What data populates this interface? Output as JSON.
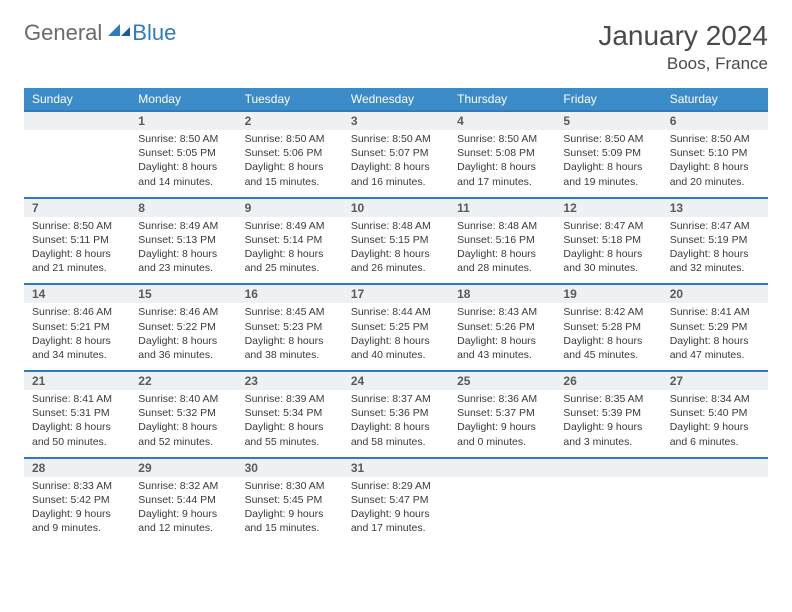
{
  "brand": {
    "general": "General",
    "blue": "Blue"
  },
  "title": {
    "month": "January 2024",
    "location": "Boos, France"
  },
  "colors": {
    "header_bg": "#3b8bc9",
    "header_text": "#ffffff",
    "row_border": "#2f7bbf",
    "daynum_bg": "#eef1f3",
    "text": "#3a3a3a"
  },
  "weekdays": [
    "Sunday",
    "Monday",
    "Tuesday",
    "Wednesday",
    "Thursday",
    "Friday",
    "Saturday"
  ],
  "weeks": [
    {
      "nums": [
        "",
        "1",
        "2",
        "3",
        "4",
        "5",
        "6"
      ],
      "cells": [
        null,
        {
          "sunrise": "Sunrise: 8:50 AM",
          "sunset": "Sunset: 5:05 PM",
          "daylight": "Daylight: 8 hours and 14 minutes."
        },
        {
          "sunrise": "Sunrise: 8:50 AM",
          "sunset": "Sunset: 5:06 PM",
          "daylight": "Daylight: 8 hours and 15 minutes."
        },
        {
          "sunrise": "Sunrise: 8:50 AM",
          "sunset": "Sunset: 5:07 PM",
          "daylight": "Daylight: 8 hours and 16 minutes."
        },
        {
          "sunrise": "Sunrise: 8:50 AM",
          "sunset": "Sunset: 5:08 PM",
          "daylight": "Daylight: 8 hours and 17 minutes."
        },
        {
          "sunrise": "Sunrise: 8:50 AM",
          "sunset": "Sunset: 5:09 PM",
          "daylight": "Daylight: 8 hours and 19 minutes."
        },
        {
          "sunrise": "Sunrise: 8:50 AM",
          "sunset": "Sunset: 5:10 PM",
          "daylight": "Daylight: 8 hours and 20 minutes."
        }
      ]
    },
    {
      "nums": [
        "7",
        "8",
        "9",
        "10",
        "11",
        "12",
        "13"
      ],
      "cells": [
        {
          "sunrise": "Sunrise: 8:50 AM",
          "sunset": "Sunset: 5:11 PM",
          "daylight": "Daylight: 8 hours and 21 minutes."
        },
        {
          "sunrise": "Sunrise: 8:49 AM",
          "sunset": "Sunset: 5:13 PM",
          "daylight": "Daylight: 8 hours and 23 minutes."
        },
        {
          "sunrise": "Sunrise: 8:49 AM",
          "sunset": "Sunset: 5:14 PM",
          "daylight": "Daylight: 8 hours and 25 minutes."
        },
        {
          "sunrise": "Sunrise: 8:48 AM",
          "sunset": "Sunset: 5:15 PM",
          "daylight": "Daylight: 8 hours and 26 minutes."
        },
        {
          "sunrise": "Sunrise: 8:48 AM",
          "sunset": "Sunset: 5:16 PM",
          "daylight": "Daylight: 8 hours and 28 minutes."
        },
        {
          "sunrise": "Sunrise: 8:47 AM",
          "sunset": "Sunset: 5:18 PM",
          "daylight": "Daylight: 8 hours and 30 minutes."
        },
        {
          "sunrise": "Sunrise: 8:47 AM",
          "sunset": "Sunset: 5:19 PM",
          "daylight": "Daylight: 8 hours and 32 minutes."
        }
      ]
    },
    {
      "nums": [
        "14",
        "15",
        "16",
        "17",
        "18",
        "19",
        "20"
      ],
      "cells": [
        {
          "sunrise": "Sunrise: 8:46 AM",
          "sunset": "Sunset: 5:21 PM",
          "daylight": "Daylight: 8 hours and 34 minutes."
        },
        {
          "sunrise": "Sunrise: 8:46 AM",
          "sunset": "Sunset: 5:22 PM",
          "daylight": "Daylight: 8 hours and 36 minutes."
        },
        {
          "sunrise": "Sunrise: 8:45 AM",
          "sunset": "Sunset: 5:23 PM",
          "daylight": "Daylight: 8 hours and 38 minutes."
        },
        {
          "sunrise": "Sunrise: 8:44 AM",
          "sunset": "Sunset: 5:25 PM",
          "daylight": "Daylight: 8 hours and 40 minutes."
        },
        {
          "sunrise": "Sunrise: 8:43 AM",
          "sunset": "Sunset: 5:26 PM",
          "daylight": "Daylight: 8 hours and 43 minutes."
        },
        {
          "sunrise": "Sunrise: 8:42 AM",
          "sunset": "Sunset: 5:28 PM",
          "daylight": "Daylight: 8 hours and 45 minutes."
        },
        {
          "sunrise": "Sunrise: 8:41 AM",
          "sunset": "Sunset: 5:29 PM",
          "daylight": "Daylight: 8 hours and 47 minutes."
        }
      ]
    },
    {
      "nums": [
        "21",
        "22",
        "23",
        "24",
        "25",
        "26",
        "27"
      ],
      "cells": [
        {
          "sunrise": "Sunrise: 8:41 AM",
          "sunset": "Sunset: 5:31 PM",
          "daylight": "Daylight: 8 hours and 50 minutes."
        },
        {
          "sunrise": "Sunrise: 8:40 AM",
          "sunset": "Sunset: 5:32 PM",
          "daylight": "Daylight: 8 hours and 52 minutes."
        },
        {
          "sunrise": "Sunrise: 8:39 AM",
          "sunset": "Sunset: 5:34 PM",
          "daylight": "Daylight: 8 hours and 55 minutes."
        },
        {
          "sunrise": "Sunrise: 8:37 AM",
          "sunset": "Sunset: 5:36 PM",
          "daylight": "Daylight: 8 hours and 58 minutes."
        },
        {
          "sunrise": "Sunrise: 8:36 AM",
          "sunset": "Sunset: 5:37 PM",
          "daylight": "Daylight: 9 hours and 0 minutes."
        },
        {
          "sunrise": "Sunrise: 8:35 AM",
          "sunset": "Sunset: 5:39 PM",
          "daylight": "Daylight: 9 hours and 3 minutes."
        },
        {
          "sunrise": "Sunrise: 8:34 AM",
          "sunset": "Sunset: 5:40 PM",
          "daylight": "Daylight: 9 hours and 6 minutes."
        }
      ]
    },
    {
      "nums": [
        "28",
        "29",
        "30",
        "31",
        "",
        "",
        ""
      ],
      "cells": [
        {
          "sunrise": "Sunrise: 8:33 AM",
          "sunset": "Sunset: 5:42 PM",
          "daylight": "Daylight: 9 hours and 9 minutes."
        },
        {
          "sunrise": "Sunrise: 8:32 AM",
          "sunset": "Sunset: 5:44 PM",
          "daylight": "Daylight: 9 hours and 12 minutes."
        },
        {
          "sunrise": "Sunrise: 8:30 AM",
          "sunset": "Sunset: 5:45 PM",
          "daylight": "Daylight: 9 hours and 15 minutes."
        },
        {
          "sunrise": "Sunrise: 8:29 AM",
          "sunset": "Sunset: 5:47 PM",
          "daylight": "Daylight: 9 hours and 17 minutes."
        },
        null,
        null,
        null
      ]
    }
  ]
}
